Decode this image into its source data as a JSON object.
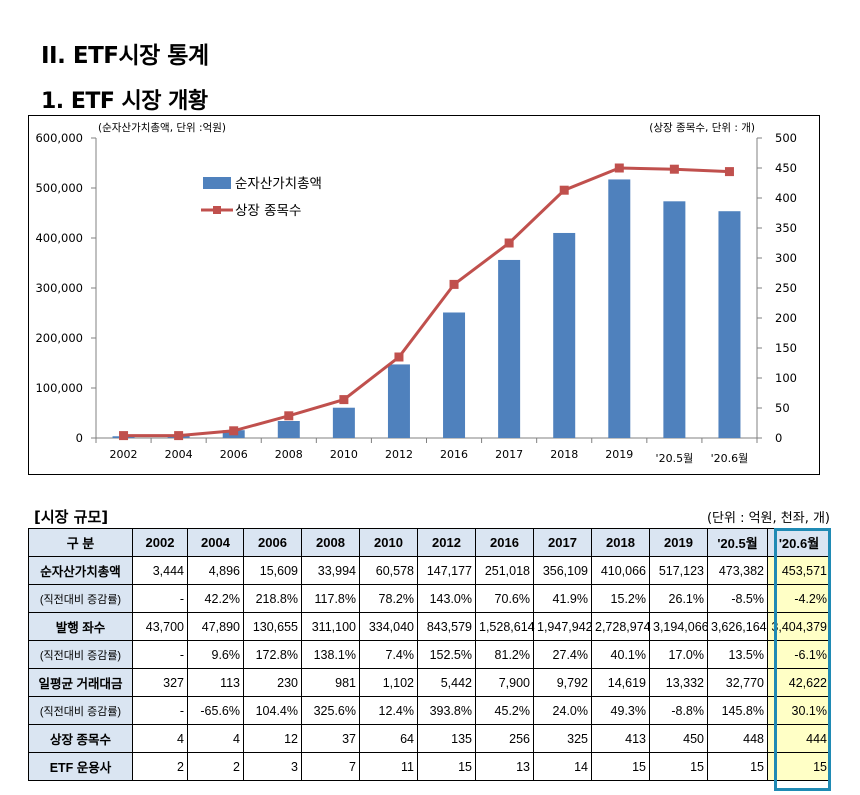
{
  "heading": "II. ETF시장 통계",
  "subheading": "1. ETF 시장 개황",
  "chart_data": {
    "type": "bar+line",
    "left_axis_note": "(순자산가치총액, 단위 :억원)",
    "right_axis_note": "(상장 종목수, 단위 : 개)",
    "categories": [
      "2002",
      "2004",
      "2006",
      "2008",
      "2010",
      "2012",
      "2016",
      "2017",
      "2018",
      "2019",
      "'20.5월",
      "'20.6월"
    ],
    "series": [
      {
        "name": "순자산가치총액",
        "kind": "bar",
        "axis": "left",
        "color": "#4f81bd",
        "values": [
          3444,
          4896,
          15609,
          33994,
          60578,
          147177,
          251018,
          356109,
          410066,
          517123,
          473382,
          453571
        ]
      },
      {
        "name": "상장 종목수",
        "kind": "line",
        "axis": "right",
        "color": "#c0504d",
        "values": [
          4,
          4,
          12,
          37,
          64,
          135,
          256,
          325,
          413,
          450,
          448,
          444
        ]
      }
    ],
    "ylim_left": [
      0,
      600000
    ],
    "ylim_right": [
      0,
      500
    ],
    "left_ticks": [
      "0",
      "100,000",
      "200,000",
      "300,000",
      "400,000",
      "500,000",
      "600,000"
    ],
    "right_ticks": [
      "0",
      "50",
      "100",
      "150",
      "200",
      "250",
      "300",
      "350",
      "400",
      "450",
      "500"
    ],
    "legend_position": "upper-left"
  },
  "table": {
    "title": "[시장 규모]",
    "unit": "(단위 : 억원, 천좌, 개)",
    "headers": [
      "구 분",
      "2002",
      "2004",
      "2006",
      "2008",
      "2010",
      "2012",
      "2016",
      "2017",
      "2018",
      "2019",
      "'20.5월",
      "'20.6월"
    ],
    "rows": [
      {
        "label": "순자산가치총액",
        "sub": false,
        "cells": [
          "3,444",
          "4,896",
          "15,609",
          "33,994",
          "60,578",
          "147,177",
          "251,018",
          "356,109",
          "410,066",
          "517,123",
          "473,382",
          "453,571"
        ]
      },
      {
        "label": "(직전대비 증감률)",
        "sub": true,
        "cells": [
          "-",
          "42.2%",
          "218.8%",
          "117.8%",
          "78.2%",
          "143.0%",
          "70.6%",
          "41.9%",
          "15.2%",
          "26.1%",
          "-8.5%",
          "-4.2%"
        ]
      },
      {
        "label": "발행 좌수",
        "sub": false,
        "cells": [
          "43,700",
          "47,890",
          "130,655",
          "311,100",
          "334,040",
          "843,579",
          "1,528,614",
          "1,947,942",
          "2,728,974",
          "3,194,066",
          "3,626,164",
          "3,404,379"
        ]
      },
      {
        "label": "(직전대비 증감률)",
        "sub": true,
        "cells": [
          "-",
          "9.6%",
          "172.8%",
          "138.1%",
          "7.4%",
          "152.5%",
          "81.2%",
          "27.4%",
          "40.1%",
          "17.0%",
          "13.5%",
          "-6.1%"
        ]
      },
      {
        "label": "일평균 거래대금",
        "sub": false,
        "cells": [
          "327",
          "113",
          "230",
          "981",
          "1,102",
          "5,442",
          "7,900",
          "9,792",
          "14,619",
          "13,332",
          "32,770",
          "42,622"
        ]
      },
      {
        "label": "(직전대비 증감률)",
        "sub": true,
        "cells": [
          "-",
          "-65.6%",
          "104.4%",
          "325.6%",
          "12.4%",
          "393.8%",
          "45.2%",
          "24.0%",
          "49.3%",
          "-8.8%",
          "145.8%",
          "30.1%"
        ]
      },
      {
        "label": "상장 종목수",
        "sub": false,
        "cells": [
          "4",
          "4",
          "12",
          "37",
          "64",
          "135",
          "256",
          "325",
          "413",
          "450",
          "448",
          "444"
        ]
      },
      {
        "label": "ETF 운용사",
        "sub": false,
        "cells": [
          "2",
          "2",
          "3",
          "7",
          "11",
          "15",
          "13",
          "14",
          "15",
          "15",
          "15",
          "15"
        ]
      }
    ]
  }
}
